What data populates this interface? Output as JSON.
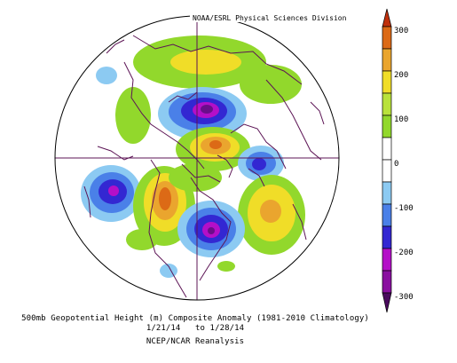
{
  "credit": "NOAA/ESRL Physical Sciences Division",
  "title_line1": "500mb Geopotential Height (m) Composite Anomaly (1981-2010 Climatology)",
  "title_line2": "1/21/14   to 1/28/14",
  "title_line3": "NCEP/NCAR Reanalysis",
  "colorbar": {
    "labels": [
      "300",
      "200",
      "100",
      "0",
      "-100",
      "-200",
      "-300"
    ],
    "colors": [
      "#dc6a16",
      "#eaa52e",
      "#f0dd28",
      "#92d82c",
      "#ffffff",
      "#ffffff",
      "#8ccaf2",
      "#4a80e8",
      "#3327d2",
      "#b40fc8",
      "#6a0e8a"
    ]
  },
  "map": {
    "projection": "north-polar-stereographic",
    "ocean_color": "#ffffff",
    "coast_color": "#5c1455"
  }
}
